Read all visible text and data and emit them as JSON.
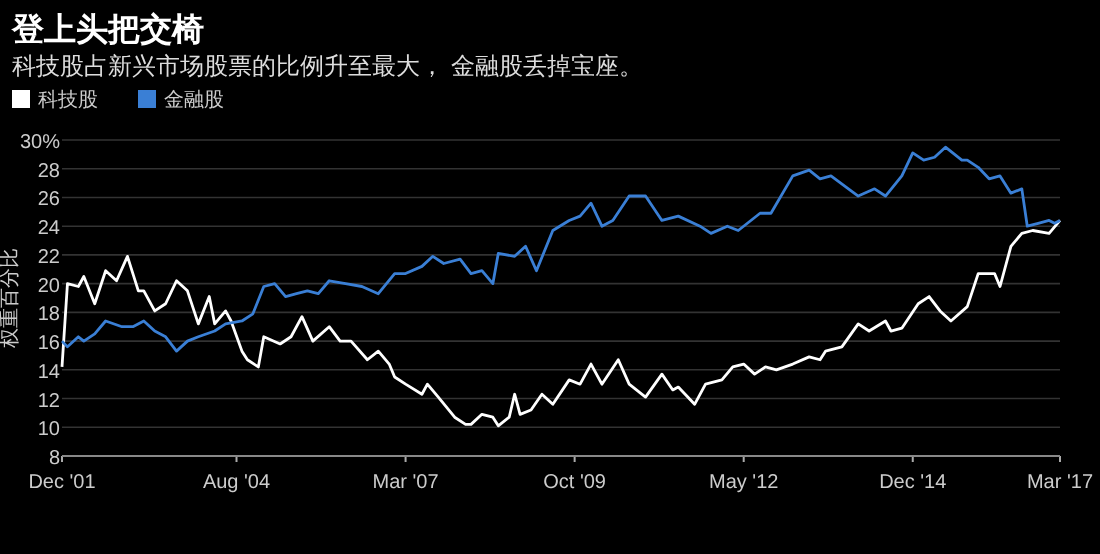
{
  "chart_data": {
    "type": "line",
    "title": "登上头把交椅",
    "subtitle": "科技股占新兴市场股票的比例升至最大， 金融股丢掉宝座。",
    "ylabel": "权重百分比",
    "xlim": [
      "2001-12",
      "2017-03"
    ],
    "xticks": [
      {
        "value": "2001-12",
        "label": "Dec '01"
      },
      {
        "value": "2004-08",
        "label": "Aug '04"
      },
      {
        "value": "2007-03",
        "label": "Mar '07"
      },
      {
        "value": "2009-10",
        "label": "Oct '09"
      },
      {
        "value": "2012-05",
        "label": "May '12"
      },
      {
        "value": "2014-12",
        "label": "Dec '14"
      },
      {
        "value": "2017-03",
        "label": "Mar '17"
      }
    ],
    "ylim": [
      8,
      30
    ],
    "yticks": [
      8,
      10,
      12,
      14,
      16,
      18,
      20,
      22,
      24,
      26,
      28,
      {
        "value": 30,
        "label": "30%"
      }
    ],
    "grid": "y",
    "legend": "top left",
    "marker": "none",
    "line_style": "solid",
    "series": [
      {
        "name": "科技股",
        "color": "#ffffff",
        "x": [
          "2001-12",
          "2002-01",
          "2002-03",
          "2002-04",
          "2002-06",
          "2002-08",
          "2002-10",
          "2002-12",
          "2003-02",
          "2003-03",
          "2003-05",
          "2003-07",
          "2003-09",
          "2003-11",
          "2004-01",
          "2004-03",
          "2004-04",
          "2004-06",
          "2004-07",
          "2004-09",
          "2004-10",
          "2004-12",
          "2005-01",
          "2005-04",
          "2005-06",
          "2005-08",
          "2005-10",
          "2006-01",
          "2006-03",
          "2006-05",
          "2006-08",
          "2006-10",
          "2006-12",
          "2007-01",
          "2007-03",
          "2007-06",
          "2007-07",
          "2007-09",
          "2007-12",
          "2008-02",
          "2008-03",
          "2008-05",
          "2008-07",
          "2008-08",
          "2008-10",
          "2008-11",
          "2008-12",
          "2009-02",
          "2009-04",
          "2009-06",
          "2009-09",
          "2009-11",
          "2010-01",
          "2010-03",
          "2010-06",
          "2010-08",
          "2010-11",
          "2011-02",
          "2011-04",
          "2011-05",
          "2011-08",
          "2011-10",
          "2012-01",
          "2012-03",
          "2012-05",
          "2012-07",
          "2012-09",
          "2012-11",
          "2013-02",
          "2013-05",
          "2013-07",
          "2013-08",
          "2013-11",
          "2014-02",
          "2014-04",
          "2014-07",
          "2014-08",
          "2014-10",
          "2015-01",
          "2015-03",
          "2015-05",
          "2015-07",
          "2015-10",
          "2015-12",
          "2016-03",
          "2016-04",
          "2016-06",
          "2016-08",
          "2016-10",
          "2017-01",
          "2017-03"
        ],
        "values": [
          14.2,
          20.0,
          19.8,
          20.5,
          18.6,
          20.9,
          20.2,
          21.9,
          19.5,
          19.5,
          18.1,
          18.6,
          20.2,
          19.5,
          17.2,
          19.1,
          17.2,
          18.1,
          17.4,
          15.3,
          14.7,
          14.2,
          16.3,
          15.8,
          16.3,
          17.7,
          16.0,
          17.0,
          16.0,
          16.0,
          14.7,
          15.3,
          14.4,
          13.5,
          13.0,
          12.3,
          13.0,
          12.1,
          10.7,
          10.2,
          10.2,
          10.9,
          10.7,
          10.1,
          10.7,
          12.3,
          10.9,
          11.2,
          12.3,
          11.6,
          13.3,
          13.0,
          14.4,
          13.0,
          14.7,
          13.0,
          12.1,
          13.7,
          12.6,
          12.8,
          11.6,
          13.0,
          13.3,
          14.2,
          14.4,
          13.7,
          14.2,
          14.0,
          14.4,
          14.9,
          14.7,
          15.3,
          15.6,
          17.2,
          16.7,
          17.4,
          16.7,
          16.9,
          18.6,
          19.1,
          18.1,
          17.4,
          18.4,
          20.7,
          20.7,
          19.8,
          22.6,
          23.5,
          23.7,
          23.5,
          24.4
        ]
      },
      {
        "name": "金融股",
        "color": "#3a7fd5",
        "x": [
          "2001-12",
          "2002-01",
          "2002-03",
          "2002-04",
          "2002-06",
          "2002-08",
          "2002-11",
          "2003-01",
          "2003-03",
          "2003-05",
          "2003-07",
          "2003-09",
          "2003-11",
          "2004-01",
          "2004-04",
          "2004-06",
          "2004-09",
          "2004-11",
          "2005-01",
          "2005-03",
          "2005-05",
          "2005-07",
          "2005-09",
          "2005-11",
          "2006-01",
          "2006-04",
          "2006-07",
          "2006-10",
          "2007-01",
          "2007-03",
          "2007-06",
          "2007-08",
          "2007-10",
          "2008-01",
          "2008-03",
          "2008-05",
          "2008-07",
          "2008-08",
          "2008-11",
          "2009-01",
          "2009-03",
          "2009-06",
          "2009-09",
          "2009-11",
          "2010-01",
          "2010-03",
          "2010-05",
          "2010-08",
          "2010-11",
          "2011-02",
          "2011-05",
          "2011-09",
          "2011-11",
          "2012-02",
          "2012-04",
          "2012-08",
          "2012-10",
          "2013-02",
          "2013-05",
          "2013-07",
          "2013-09",
          "2014-02",
          "2014-05",
          "2014-07",
          "2014-10",
          "2014-12",
          "2015-02",
          "2015-04",
          "2015-06",
          "2015-09",
          "2015-10",
          "2015-12",
          "2016-02",
          "2016-04",
          "2016-06",
          "2016-08",
          "2016-09",
          "2016-11",
          "2017-01",
          "2017-02",
          "2017-03"
        ],
        "values": [
          16.0,
          15.6,
          16.3,
          16.0,
          16.5,
          17.4,
          17.0,
          17.0,
          17.4,
          16.7,
          16.3,
          15.3,
          16.0,
          16.3,
          16.7,
          17.2,
          17.4,
          17.9,
          19.8,
          20.0,
          19.1,
          19.3,
          19.5,
          19.3,
          20.2,
          20.0,
          19.8,
          19.3,
          20.7,
          20.7,
          21.2,
          21.9,
          21.4,
          21.7,
          20.7,
          20.9,
          20.0,
          22.1,
          21.9,
          22.6,
          20.9,
          23.7,
          24.4,
          24.7,
          25.6,
          24.0,
          24.4,
          26.1,
          26.1,
          24.4,
          24.7,
          24.0,
          23.5,
          24.0,
          23.7,
          24.9,
          24.9,
          27.5,
          27.9,
          27.3,
          27.5,
          26.1,
          26.6,
          26.1,
          27.5,
          29.1,
          28.6,
          28.8,
          29.5,
          28.6,
          28.6,
          28.1,
          27.3,
          27.5,
          26.3,
          26.6,
          24.0,
          24.2,
          24.4,
          24.2,
          24.4
        ]
      }
    ]
  }
}
